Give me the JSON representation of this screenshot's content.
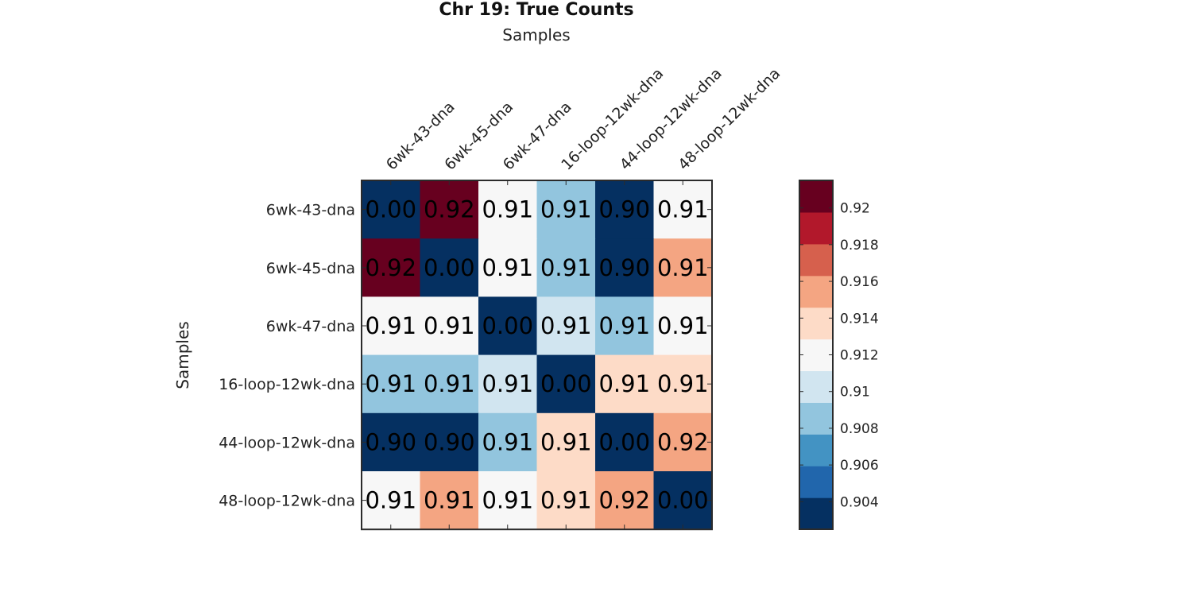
{
  "chart_data": {
    "type": "heatmap",
    "title": "Chr 19: True Counts",
    "xlabel": "Samples",
    "ylabel": "Samples",
    "rows": [
      "6wk-43-dna",
      "6wk-45-dna",
      "6wk-47-dna",
      "16-loop-12wk-dna",
      "44-loop-12wk-dna",
      "48-loop-12wk-dna"
    ],
    "columns": [
      "6wk-43-dna",
      "6wk-45-dna",
      "6wk-47-dna",
      "16-loop-12wk-dna",
      "44-loop-12wk-dna",
      "48-loop-12wk-dna"
    ],
    "values": [
      [
        0.0,
        0.921,
        0.9115,
        0.9085,
        0.903,
        0.9115
      ],
      [
        0.921,
        0.0,
        0.9115,
        0.9085,
        0.903,
        0.915
      ],
      [
        0.9115,
        0.9115,
        0.0,
        0.9105,
        0.9085,
        0.9115
      ],
      [
        0.9085,
        0.9085,
        0.9105,
        0.0,
        0.913,
        0.913
      ],
      [
        0.903,
        0.903,
        0.9085,
        0.913,
        0.0,
        0.915
      ],
      [
        0.9115,
        0.915,
        0.9115,
        0.913,
        0.915,
        0.0
      ]
    ],
    "cell_labels": [
      [
        "0.00",
        "0.92",
        "0.91",
        "0.91",
        "0.90",
        "0.91"
      ],
      [
        "0.92",
        "0.00",
        "0.91",
        "0.91",
        "0.90",
        "0.91"
      ],
      [
        "0.91",
        "0.91",
        "0.00",
        "0.91",
        "0.91",
        "0.91"
      ],
      [
        "0.91",
        "0.91",
        "0.91",
        "0.00",
        "0.91",
        "0.91"
      ],
      [
        "0.90",
        "0.90",
        "0.91",
        "0.91",
        "0.00",
        "0.92"
      ],
      [
        "0.91",
        "0.91",
        "0.91",
        "0.91",
        "0.92",
        "0.00"
      ]
    ],
    "colorbar": {
      "range": [
        0.9025,
        0.9215
      ],
      "ticks": [
        0.904,
        0.906,
        0.908,
        0.91,
        0.912,
        0.914,
        0.916,
        0.918,
        0.92
      ],
      "tick_labels": [
        "0.904",
        "0.906",
        "0.908",
        "0.91",
        "0.912",
        "0.914",
        "0.916",
        "0.918",
        "0.92"
      ],
      "colors": [
        "#053061",
        "#2166ac",
        "#4393c3",
        "#92c5de",
        "#d1e5f0",
        "#f7f7f7",
        "#fddbc7",
        "#f4a582",
        "#d6604d",
        "#b2182b",
        "#67001f"
      ],
      "placement": "right"
    }
  }
}
